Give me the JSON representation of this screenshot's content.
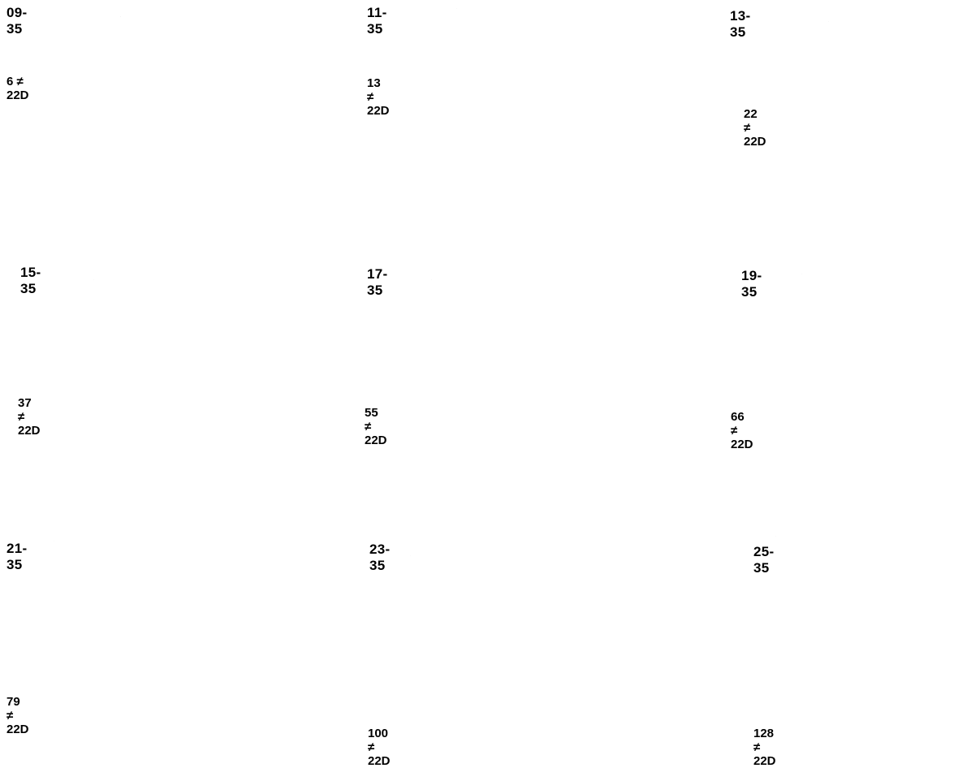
{
  "connectors": [
    {
      "code": "09-35",
      "count_label": "6 ≠ 22D",
      "contacts": 6
    },
    {
      "code": "11-35",
      "count_label": "13 ≠ 22D",
      "contacts": 13
    },
    {
      "code": "13-35",
      "count_label": "22 ≠ 22D",
      "contacts": 22
    },
    {
      "code": "15-35",
      "count_label": "37 ≠ 22D",
      "contacts": 37
    },
    {
      "code": "17-35",
      "count_label": "55 ≠ 22D",
      "contacts": 55
    },
    {
      "code": "19-35",
      "count_label": "66 ≠ 22D",
      "contacts": 66
    },
    {
      "code": "21-35",
      "count_label": "79 ≠ 22D",
      "contacts": 79
    },
    {
      "code": "23-35",
      "count_label": "100 ≠ 22D",
      "contacts": 100
    },
    {
      "code": "25-35",
      "count_label": "128 ≠ 22D",
      "contacts": 128
    }
  ]
}
